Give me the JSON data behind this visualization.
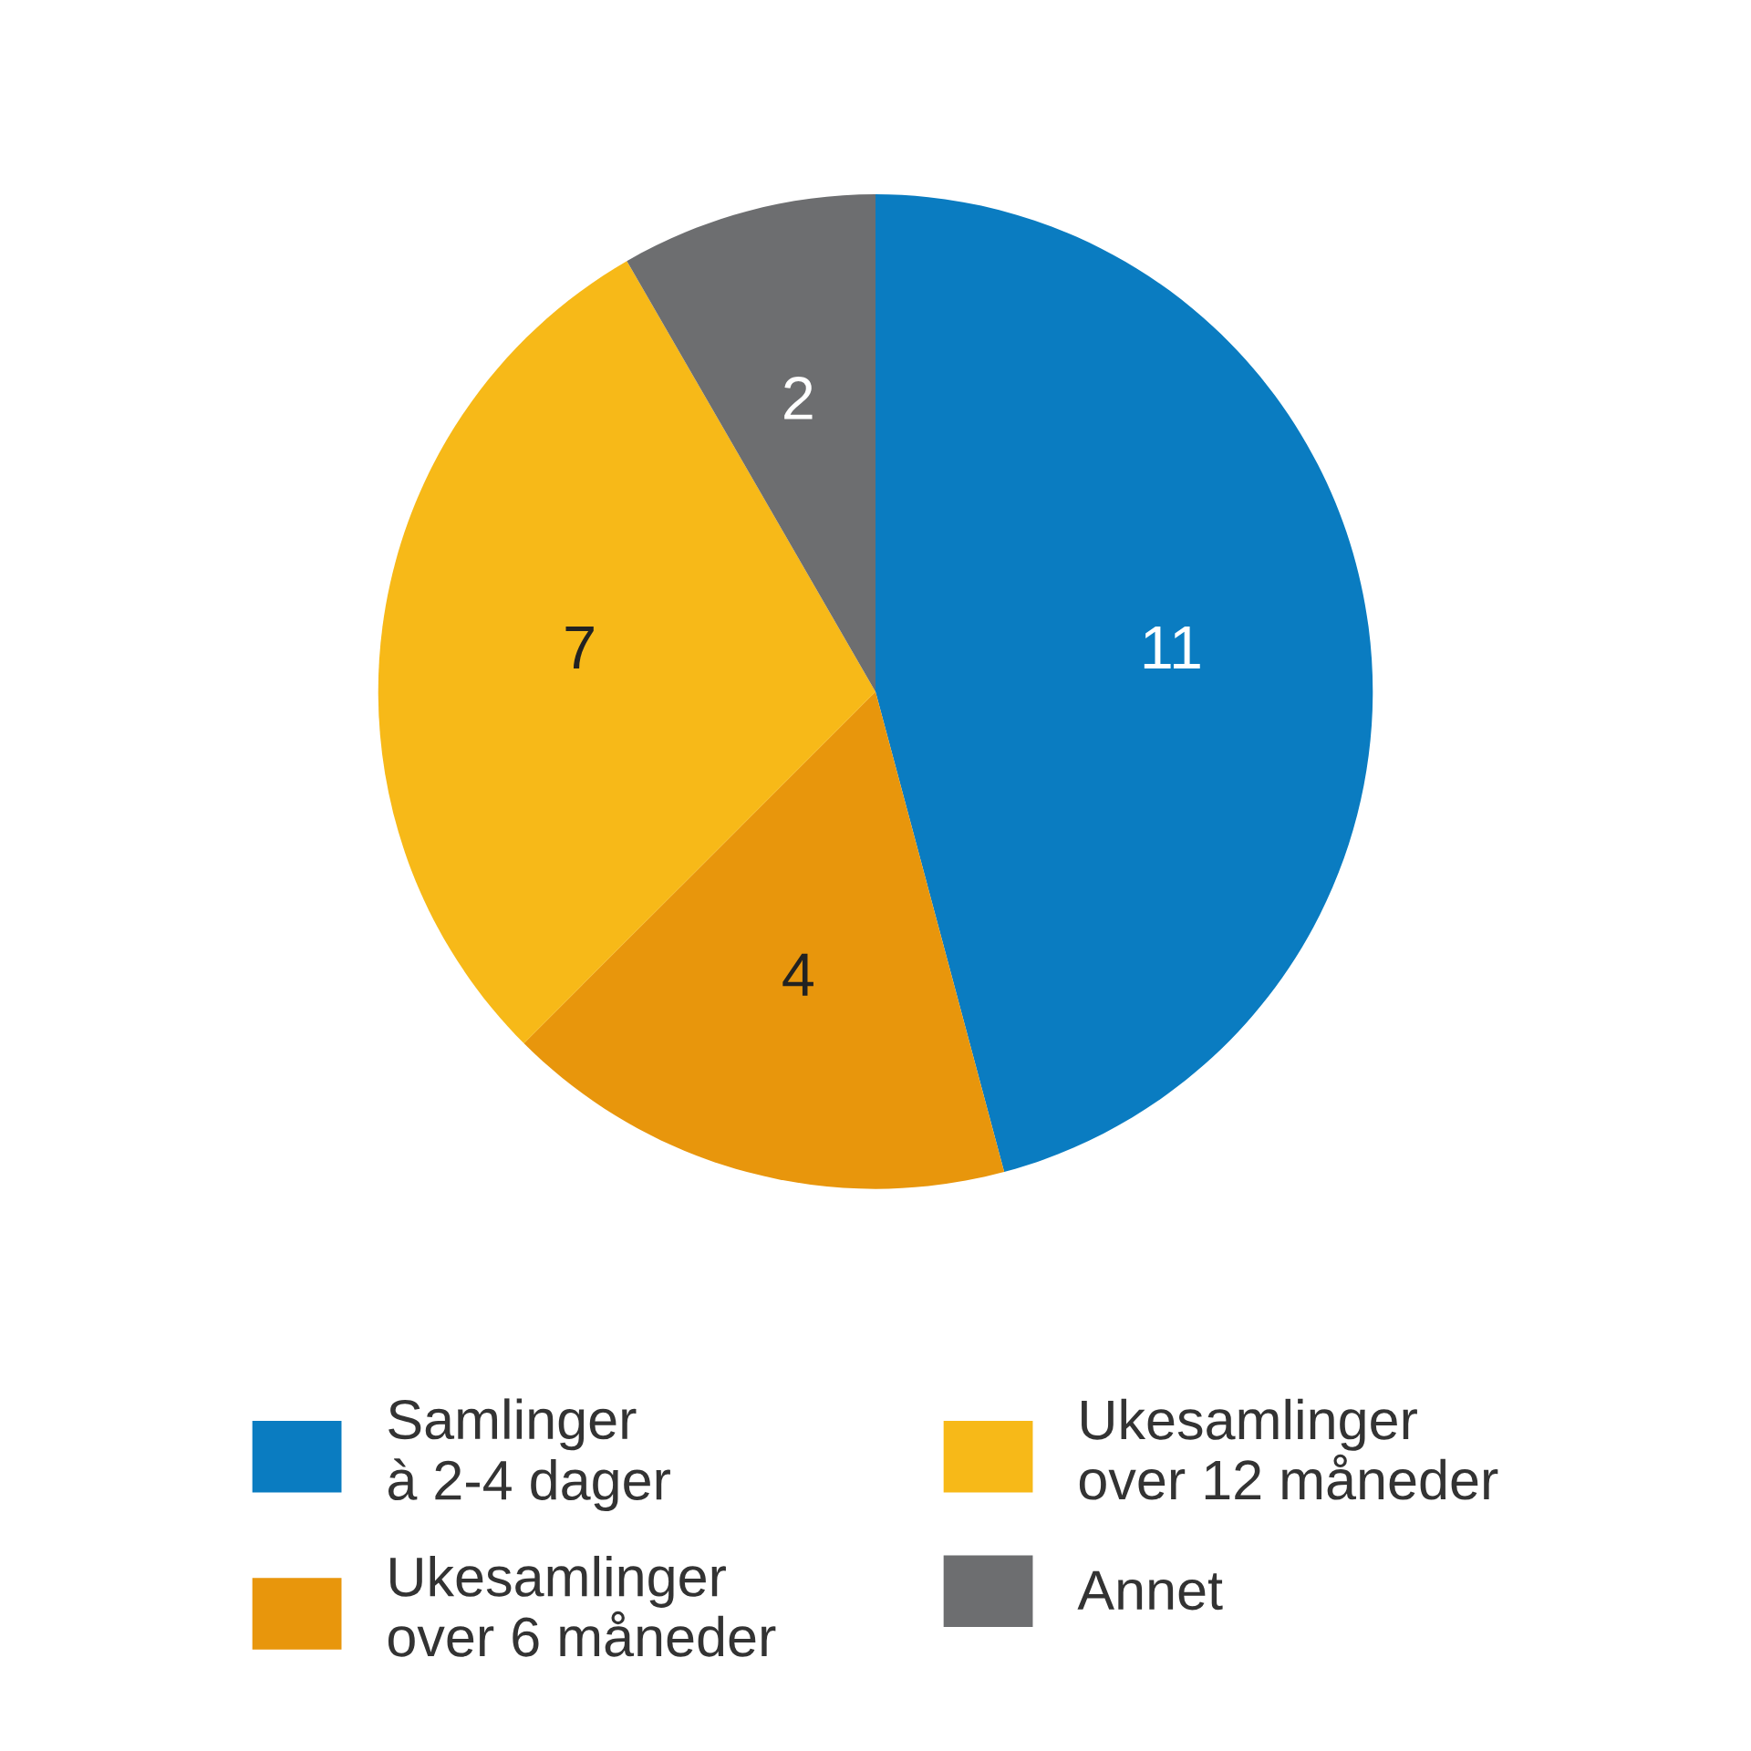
{
  "chart_data": {
    "type": "pie",
    "categories": [
      "Samlinger\nà 2-4 dager",
      "Ukesamlinger\nover 6 måneder",
      "Ukesamlinger\nover 12 måneder",
      "Annet"
    ],
    "values": [
      11,
      4,
      7,
      2
    ],
    "colors": [
      "#0a7cc1",
      "#e8960c",
      "#f7b918",
      "#6d6e70"
    ],
    "data_labels": true,
    "legend": "bottom"
  }
}
